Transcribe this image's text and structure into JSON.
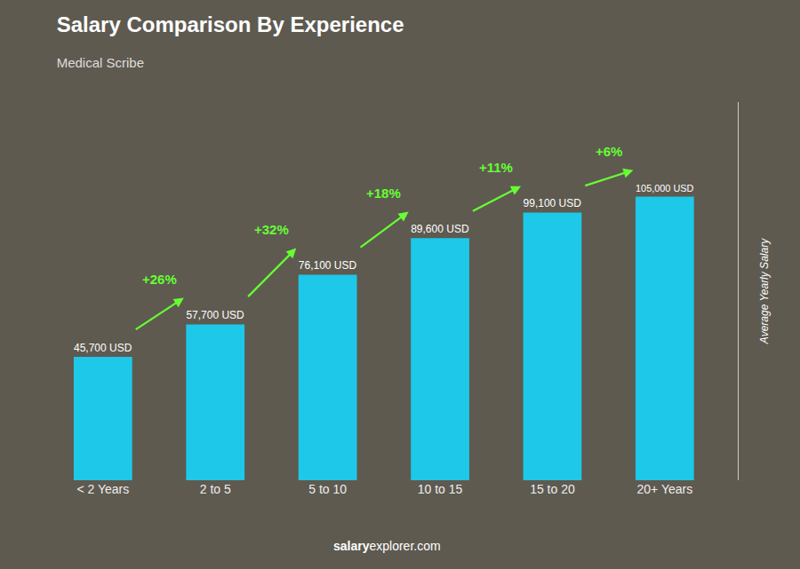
{
  "chart_data": {
    "type": "bar",
    "title": "Salary Comparison By Experience",
    "subtitle": "Medical Scribe",
    "categories": [
      "< 2 Years",
      "2 to 5",
      "5 to 10",
      "10 to 15",
      "15 to 20",
      "20+ Years"
    ],
    "values": [
      45700,
      57700,
      76100,
      89600,
      99100,
      105000
    ],
    "value_labels": [
      "45,700 USD",
      "57,700 USD",
      "76,100 USD",
      "89,600 USD",
      "99,100 USD",
      "105,000 USD"
    ],
    "data_labels": true,
    "color": "#1EC8E8",
    "ylabel": "Average Yearly Salary",
    "ylim": [
      0,
      140000
    ],
    "tick_labels": "x",
    "grid": false,
    "annotations": [
      {
        "text": "+26%",
        "color": "#66FF33"
      },
      {
        "text": "+32%",
        "color": "#66FF33"
      },
      {
        "text": "+18%",
        "color": "#66FF33"
      },
      {
        "text": "+11%",
        "color": "#66FF33"
      },
      {
        "text": "+6%",
        "color": "#66FF33"
      }
    ],
    "footer": [
      "salary",
      "explorer.com"
    ]
  }
}
